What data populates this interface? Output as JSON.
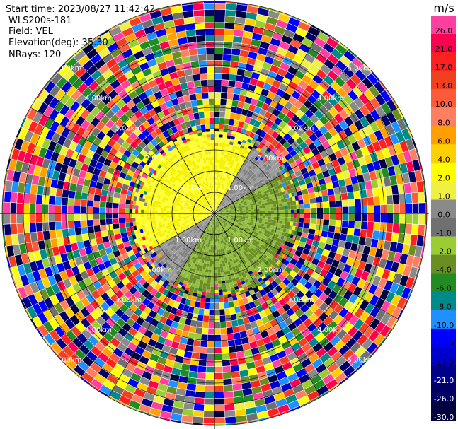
{
  "header": {
    "start_time": "Start time: 2023/08/27 11:42:42",
    "site": "WLS200s-181",
    "field": "Field: VEL",
    "elevation": "Elevation(deg): 35.30",
    "nrays": "NRays: 120"
  },
  "colorbar": {
    "unit": "m/s",
    "levels": [
      {
        "label": "26.0",
        "color": "#ff40a0"
      },
      {
        "label": "21.0",
        "color": "#ff0050"
      },
      {
        "label": "17.0",
        "color": "#ff2020"
      },
      {
        "label": "13.0",
        "color": "#f04020"
      },
      {
        "label": "10.0",
        "color": "#ff5a3a"
      },
      {
        "label": "8.0",
        "color": "#ff8060"
      },
      {
        "label": "6.0",
        "color": "#ffa000"
      },
      {
        "label": "4.0",
        "color": "#ffd000"
      },
      {
        "label": "2.0",
        "color": "#ffff00"
      },
      {
        "label": "1.0",
        "color": "#f0f040"
      },
      {
        "label": "0.0",
        "color": "#8a8a8a"
      },
      {
        "label": "-1.0",
        "color": "#707070"
      },
      {
        "label": "-2.0",
        "color": "#9acd32"
      },
      {
        "label": "-4.0",
        "color": "#6b8e23"
      },
      {
        "label": "-6.0",
        "color": "#228b22"
      },
      {
        "label": "-8.0",
        "color": "#008b8b"
      },
      {
        "label": "-10.0",
        "color": "#1e90ff"
      },
      {
        "label": "-13.0",
        "color": "#0000ff"
      },
      {
        "label": "-17.0",
        "color": "#0000cd"
      },
      {
        "label": "-21.0",
        "color": "#00008b"
      },
      {
        "label": "-26.0",
        "color": "#000066"
      },
      {
        "label": "-30.0",
        "color": "#000040"
      }
    ]
  },
  "chart_data": {
    "type": "heatmap",
    "projection": "polar (PPI)",
    "field": "VEL",
    "unit": "m/s",
    "rays": 120,
    "ring_labels": [
      "1.00km",
      "2.00km",
      "3.00km",
      "4.00km",
      "5.00km"
    ],
    "near_field_pattern": "positive velocities (yellow, ~1-2 m/s) toward upper-left; negative (olive/green, ~-2 to -4 m/s) toward lower-right; gray near zero",
    "far_field_pattern": "noise: random colors across full scale"
  }
}
